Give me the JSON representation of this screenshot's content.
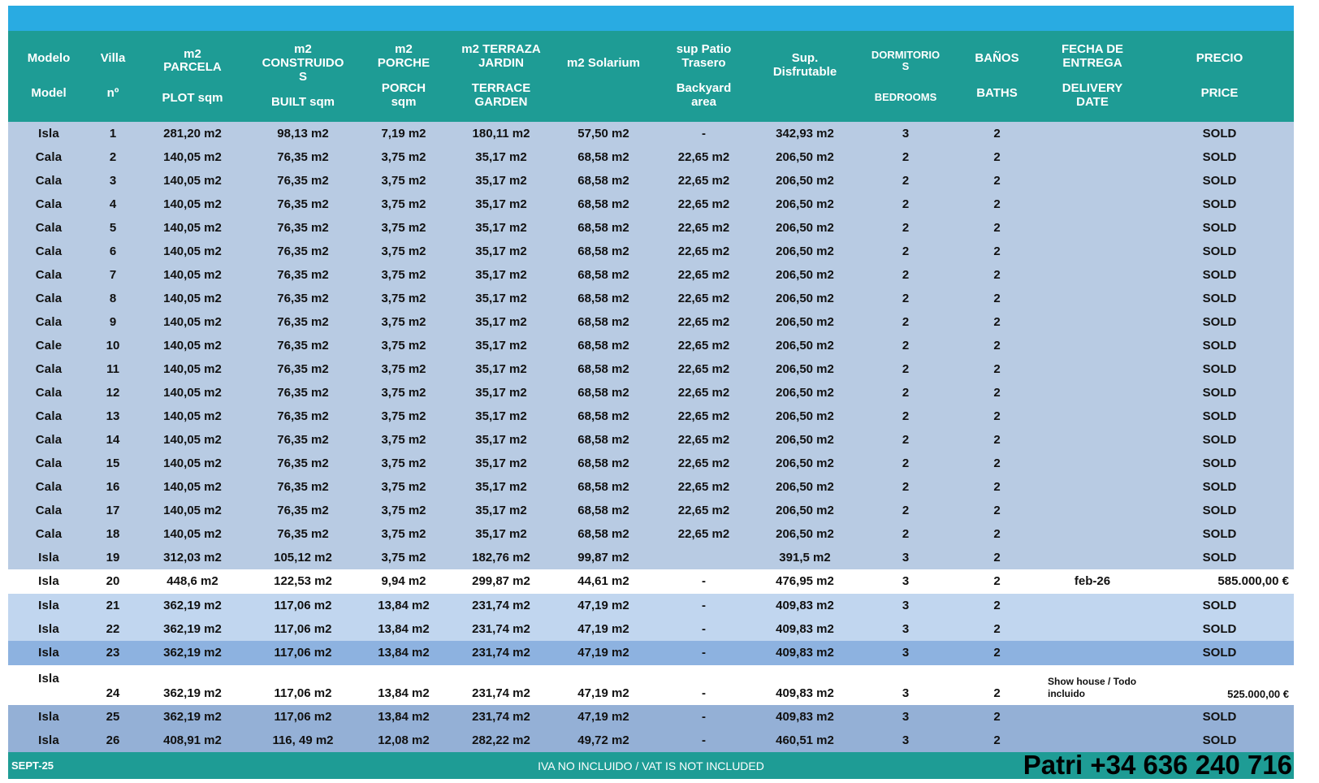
{
  "colors": {
    "title_bar": "#29ABE2",
    "header_teal": "#1E9C95",
    "row_blue": "#B8CBE3",
    "row_light_blue": "#C1D6EF",
    "row_dark_blue_23": "#8DB2E0",
    "row_dark_blue_25_26": "#94B0D6",
    "row_white": "#FFFFFF",
    "text": "#111111"
  },
  "table": {
    "columns": [
      {
        "id": "modelo",
        "es": "Modelo",
        "en": "Model"
      },
      {
        "id": "villa",
        "es": "Villa",
        "en": "nº"
      },
      {
        "id": "parcela",
        "es": "m2 PARCELA",
        "en": "PLOT sqm"
      },
      {
        "id": "construidos",
        "es": "m2 CONSTRUIDOS",
        "en": "BUILT sqm"
      },
      {
        "id": "porche",
        "es": "m2 PORCHE",
        "en": "PORCH sqm"
      },
      {
        "id": "terraza",
        "es": "m2 TERRAZA JARDIN",
        "en": "TERRACE GARDEN"
      },
      {
        "id": "solarium",
        "es": "m2 Solarium",
        "en": ""
      },
      {
        "id": "patio",
        "es": "sup Patio Trasero",
        "en": "Backyard area"
      },
      {
        "id": "disfrutable",
        "es": "Sup. Disfrutable",
        "en": ""
      },
      {
        "id": "dormitorios",
        "es": "DORMITORIOS",
        "en": "BEDROOMS"
      },
      {
        "id": "banos",
        "es": "BAÑOS",
        "en": "BATHS"
      },
      {
        "id": "fecha",
        "es": "FECHA DE ENTREGA",
        "en": "DELIVERY DATE"
      },
      {
        "id": "precio",
        "es": "PRECIO",
        "en": "PRICE"
      }
    ],
    "rows": [
      {
        "modelo": "Isla",
        "villa": "1",
        "parcela": "281,20 m2",
        "construidos": "98,13 m2",
        "porche": "7,19 m2",
        "terraza": "180,11 m2",
        "solarium": "57,50 m2",
        "patio": "-",
        "disfrutable": "342,93 m2",
        "dormitorios": "3",
        "banos": "2",
        "fecha": "",
        "precio": "SOLD",
        "bg": "band"
      },
      {
        "modelo": "Cala",
        "villa": "2",
        "parcela": "140,05 m2",
        "construidos": "76,35 m2",
        "porche": "3,75 m2",
        "terraza": "35,17 m2",
        "solarium": "68,58 m2",
        "patio": "22,65 m2",
        "disfrutable": "206,50 m2",
        "dormitorios": "2",
        "banos": "2",
        "fecha": "",
        "precio": "SOLD",
        "bg": "band"
      },
      {
        "modelo": "Cala",
        "villa": "3",
        "parcela": "140,05 m2",
        "construidos": "76,35 m2",
        "porche": "3,75 m2",
        "terraza": "35,17 m2",
        "solarium": "68,58 m2",
        "patio": "22,65 m2",
        "disfrutable": "206,50 m2",
        "dormitorios": "2",
        "banos": "2",
        "fecha": "",
        "precio": "SOLD",
        "bg": "band"
      },
      {
        "modelo": "Cala",
        "villa": "4",
        "parcela": "140,05 m2",
        "construidos": "76,35 m2",
        "porche": "3,75 m2",
        "terraza": "35,17 m2",
        "solarium": "68,58 m2",
        "patio": "22,65 m2",
        "disfrutable": "206,50 m2",
        "dormitorios": "2",
        "banos": "2",
        "fecha": "",
        "precio": "SOLD",
        "bg": "band"
      },
      {
        "modelo": "Cala",
        "villa": "5",
        "parcela": "140,05 m2",
        "construidos": "76,35 m2",
        "porche": "3,75 m2",
        "terraza": "35,17 m2",
        "solarium": "68,58 m2",
        "patio": "22,65 m2",
        "disfrutable": "206,50 m2",
        "dormitorios": "2",
        "banos": "2",
        "fecha": "",
        "precio": "SOLD",
        "bg": "band"
      },
      {
        "modelo": "Cala",
        "villa": "6",
        "parcela": "140,05 m2",
        "construidos": "76,35 m2",
        "porche": "3,75 m2",
        "terraza": "35,17 m2",
        "solarium": "68,58 m2",
        "patio": "22,65 m2",
        "disfrutable": "206,50 m2",
        "dormitorios": "2",
        "banos": "2",
        "fecha": "",
        "precio": "SOLD",
        "bg": "band"
      },
      {
        "modelo": "Cala",
        "villa": "7",
        "parcela": "140,05 m2",
        "construidos": "76,35 m2",
        "porche": "3,75 m2",
        "terraza": "35,17 m2",
        "solarium": "68,58 m2",
        "patio": "22,65 m2",
        "disfrutable": "206,50 m2",
        "dormitorios": "2",
        "banos": "2",
        "fecha": "",
        "precio": "SOLD",
        "bg": "band"
      },
      {
        "modelo": "Cala",
        "villa": "8",
        "parcela": "140,05 m2",
        "construidos": "76,35 m2",
        "porche": "3,75 m2",
        "terraza": "35,17 m2",
        "solarium": "68,58 m2",
        "patio": "22,65 m2",
        "disfrutable": "206,50 m2",
        "dormitorios": "2",
        "banos": "2",
        "fecha": "",
        "precio": "SOLD",
        "bg": "band"
      },
      {
        "modelo": "Cala",
        "villa": "9",
        "parcela": "140,05 m2",
        "construidos": "76,35 m2",
        "porche": "3,75 m2",
        "terraza": "35,17 m2",
        "solarium": "68,58 m2",
        "patio": "22,65 m2",
        "disfrutable": "206,50 m2",
        "dormitorios": "2",
        "banos": "2",
        "fecha": "",
        "precio": "SOLD",
        "bg": "band"
      },
      {
        "modelo": "Cale",
        "villa": "10",
        "parcela": "140,05 m2",
        "construidos": "76,35 m2",
        "porche": "3,75 m2",
        "terraza": "35,17 m2",
        "solarium": "68,58 m2",
        "patio": "22,65 m2",
        "disfrutable": "206,50 m2",
        "dormitorios": "2",
        "banos": "2",
        "fecha": "",
        "precio": "SOLD",
        "bg": "band"
      },
      {
        "modelo": "Cala",
        "villa": "11",
        "parcela": "140,05 m2",
        "construidos": "76,35 m2",
        "porche": "3,75 m2",
        "terraza": "35,17 m2",
        "solarium": "68,58 m2",
        "patio": "22,65 m2",
        "disfrutable": "206,50 m2",
        "dormitorios": "2",
        "banos": "2",
        "fecha": "",
        "precio": "SOLD",
        "bg": "band"
      },
      {
        "modelo": "Cala",
        "villa": "12",
        "parcela": "140,05 m2",
        "construidos": "76,35 m2",
        "porche": "3,75 m2",
        "terraza": "35,17 m2",
        "solarium": "68,58 m2",
        "patio": "22,65 m2",
        "disfrutable": "206,50 m2",
        "dormitorios": "2",
        "banos": "2",
        "fecha": "",
        "precio": "SOLD",
        "bg": "band"
      },
      {
        "modelo": "Cala",
        "villa": "13",
        "parcela": "140,05 m2",
        "construidos": "76,35 m2",
        "porche": "3,75 m2",
        "terraza": "35,17 m2",
        "solarium": "68,58 m2",
        "patio": "22,65 m2",
        "disfrutable": "206,50 m2",
        "dormitorios": "2",
        "banos": "2",
        "fecha": "",
        "precio": "SOLD",
        "bg": "band"
      },
      {
        "modelo": "Cala",
        "villa": "14",
        "parcela": "140,05 m2",
        "construidos": "76,35 m2",
        "porche": "3,75 m2",
        "terraza": "35,17 m2",
        "solarium": "68,58 m2",
        "patio": "22,65 m2",
        "disfrutable": "206,50 m2",
        "dormitorios": "2",
        "banos": "2",
        "fecha": "",
        "precio": "SOLD",
        "bg": "band"
      },
      {
        "modelo": "Cala",
        "villa": "15",
        "parcela": "140,05 m2",
        "construidos": "76,35 m2",
        "porche": "3,75 m2",
        "terraza": "35,17 m2",
        "solarium": "68,58 m2",
        "patio": "22,65 m2",
        "disfrutable": "206,50 m2",
        "dormitorios": "2",
        "banos": "2",
        "fecha": "",
        "precio": "SOLD",
        "bg": "band"
      },
      {
        "modelo": "Cala",
        "villa": "16",
        "parcela": "140,05 m2",
        "construidos": "76,35 m2",
        "porche": "3,75 m2",
        "terraza": "35,17 m2",
        "solarium": "68,58 m2",
        "patio": "22,65 m2",
        "disfrutable": "206,50 m2",
        "dormitorios": "2",
        "banos": "2",
        "fecha": "",
        "precio": "SOLD",
        "bg": "band"
      },
      {
        "modelo": "Cala",
        "villa": "17",
        "parcela": "140,05 m2",
        "construidos": "76,35 m2",
        "porche": "3,75 m2",
        "terraza": "35,17 m2",
        "solarium": "68,58 m2",
        "patio": "22,65 m2",
        "disfrutable": "206,50 m2",
        "dormitorios": "2",
        "banos": "2",
        "fecha": "",
        "precio": "SOLD",
        "bg": "band"
      },
      {
        "modelo": "Cala",
        "villa": "18",
        "parcela": "140,05 m2",
        "construidos": "76,35 m2",
        "porche": "3,75 m2",
        "terraza": "35,17 m2",
        "solarium": "68,58 m2",
        "patio": "22,65 m2",
        "disfrutable": "206,50 m2",
        "dormitorios": "2",
        "banos": "2",
        "fecha": "",
        "precio": "SOLD",
        "bg": "band"
      },
      {
        "modelo": "Isla",
        "villa": "19",
        "parcela": "312,03 m2",
        "construidos": "105,12 m2",
        "porche": "3,75 m2",
        "terraza": "182,76 m2",
        "solarium": "99,87 m2",
        "patio": "",
        "disfrutable": "391,5 m2",
        "dormitorios": "3",
        "banos": "2",
        "fecha": "",
        "precio": "SOLD",
        "bg": "band"
      },
      {
        "modelo": "Isla",
        "villa": "20",
        "parcela": "448,6 m2",
        "construidos": "122,53 m2",
        "porche": "9,94 m2",
        "terraza": "299,87 m2",
        "solarium": "44,61 m2",
        "patio": "-",
        "disfrutable": "476,95 m2",
        "dormitorios": "3",
        "banos": "2",
        "fecha": "feb-26",
        "precio": "585.000,00 €",
        "bg": "white"
      },
      {
        "modelo": "Isla",
        "villa": "21",
        "parcela": "362,19 m2",
        "construidos": "117,06 m2",
        "porche": "13,84 m2",
        "terraza": "231,74 m2",
        "solarium": "47,19 m2",
        "patio": "-",
        "disfrutable": "409,83 m2",
        "dormitorios": "3",
        "banos": "2",
        "fecha": "",
        "precio": "SOLD",
        "bg": "light"
      },
      {
        "modelo": "Isla",
        "villa": "22",
        "parcela": "362,19 m2",
        "construidos": "117,06 m2",
        "porche": "13,84 m2",
        "terraza": "231,74 m2",
        "solarium": "47,19 m2",
        "patio": "-",
        "disfrutable": "409,83 m2",
        "dormitorios": "3",
        "banos": "2",
        "fecha": "",
        "precio": "SOLD",
        "bg": "light"
      },
      {
        "modelo": "Isla",
        "villa": "23",
        "parcela": "362,19 m2",
        "construidos": "117,06 m2",
        "porche": "13,84 m2",
        "terraza": "231,74 m2",
        "solarium": "47,19 m2",
        "patio": "-",
        "disfrutable": "409,83 m2",
        "dormitorios": "3",
        "banos": "2",
        "fecha": "",
        "precio": "SOLD",
        "bg": "dark1"
      },
      {
        "modelo": "Isla",
        "villa": "24",
        "parcela": "362,19 m2",
        "construidos": "117,06 m2",
        "porche": "13,84 m2",
        "terraza": "231,74 m2",
        "solarium": "47,19 m2",
        "patio": "-",
        "disfrutable": "409,83 m2",
        "dormitorios": "3",
        "banos": "2",
        "fecha": "Show house / Todo incluido",
        "precio": "525.000,00 €",
        "bg": "white",
        "tall": true
      },
      {
        "modelo": "Isla",
        "villa": "25",
        "parcela": "362,19 m2",
        "construidos": "117,06 m2",
        "porche": "13,84 m2",
        "terraza": "231,74 m2",
        "solarium": "47,19 m2",
        "patio": "-",
        "disfrutable": "409,83 m2",
        "dormitorios": "3",
        "banos": "2",
        "fecha": "",
        "precio": "SOLD",
        "bg": "dark2"
      },
      {
        "modelo": "Isla",
        "villa": "26",
        "parcela": "408,91 m2",
        "construidos": "116, 49 m2",
        "porche": "12,08 m2",
        "terraza": "282,22 m2",
        "solarium": "49,72 m2",
        "patio": "-",
        "disfrutable": "460,51 m2",
        "dormitorios": "3",
        "banos": "2",
        "fecha": "",
        "precio": "SOLD",
        "bg": "dark2"
      }
    ]
  },
  "footer": {
    "left": "SEPT-25",
    "center": "IVA NO INCLUIDO / VAT IS NOT INCLUDED",
    "right": "Patri +34 636 240 716"
  }
}
